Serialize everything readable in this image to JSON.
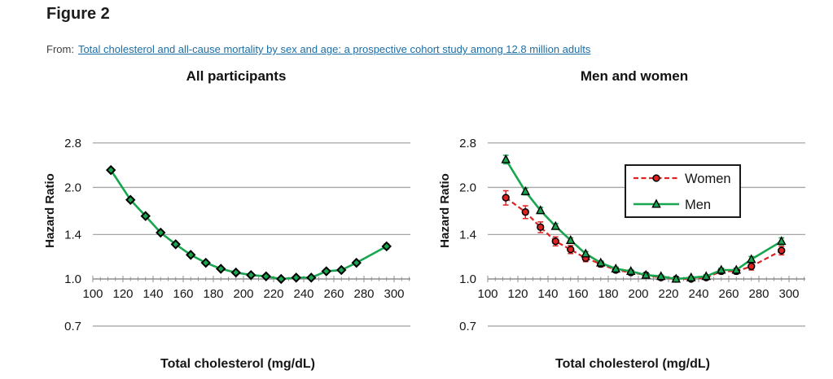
{
  "header": {
    "figure_label": "Figure 2",
    "source_prefix": "From:",
    "source_link_text": "Total cholesterol and all-cause mortality by sex and age: a prospective cohort study among 12.8 million adults"
  },
  "colors": {
    "link": "#1b6ea6",
    "grid": "#a6a6a6",
    "axis": "#8f8f8f",
    "text": "#161616",
    "women": "#dd2222",
    "men": "#17a64e",
    "marker_outline": "#000000",
    "legend_border": "#1a1a1a"
  },
  "chart_data": [
    {
      "type": "line",
      "title": "All participants",
      "xlabel": "Total cholesterol (mg/dL)",
      "ylabel": "Hazard Ratio",
      "yscale": "log",
      "grid": true,
      "xlim": [
        100,
        311
      ],
      "ylim": [
        0.65,
        3.05
      ],
      "xticks": [
        100,
        120,
        140,
        160,
        180,
        200,
        220,
        240,
        260,
        280,
        300
      ],
      "xtick_minor_step": 5,
      "ytick_values": [
        2.8,
        2.0,
        1.4,
        1.0,
        0.7
      ],
      "ytick_labels": [
        "2.8",
        "2.0",
        "1.4",
        "1.0",
        "0.7"
      ],
      "x": [
        112,
        125,
        135,
        145,
        155,
        165,
        175,
        185,
        195,
        205,
        215,
        225,
        235,
        245,
        255,
        265,
        275,
        295
      ],
      "series": [
        {
          "name": "All participants",
          "color": "#17a64e",
          "marker": "diamond",
          "line": "solid",
          "values": [
            2.28,
            1.82,
            1.61,
            1.42,
            1.3,
            1.2,
            1.13,
            1.08,
            1.05,
            1.03,
            1.02,
            1.0,
            1.01,
            1.01,
            1.06,
            1.07,
            1.13,
            1.28
          ],
          "errors": [
            0.03,
            0.025,
            0.02,
            0.018,
            0.015,
            0.013,
            0.012,
            0.01,
            0.009,
            0.008,
            0.008,
            0.007,
            0.008,
            0.009,
            0.012,
            0.013,
            0.018,
            0.025
          ]
        }
      ],
      "legend": null
    },
    {
      "type": "line",
      "title": "Men and women",
      "xlabel": "Total cholesterol (mg/dL)",
      "ylabel": "Hazard Ratio",
      "yscale": "log",
      "grid": true,
      "xlim": [
        100,
        311
      ],
      "ylim": [
        0.65,
        3.05
      ],
      "xticks": [
        100,
        120,
        140,
        160,
        180,
        200,
        220,
        240,
        260,
        280,
        300
      ],
      "xtick_minor_step": 5,
      "ytick_values": [
        2.8,
        2.0,
        1.4,
        1.0,
        0.7
      ],
      "ytick_labels": [
        "2.8",
        "2.0",
        "1.4",
        "1.0",
        "0.7"
      ],
      "x": [
        112,
        125,
        135,
        145,
        155,
        165,
        175,
        185,
        195,
        205,
        215,
        225,
        235,
        245,
        255,
        265,
        275,
        295
      ],
      "series": [
        {
          "name": "Women",
          "color": "#dd2222",
          "marker": "circle",
          "line": "dashed",
          "values": [
            1.85,
            1.66,
            1.48,
            1.33,
            1.25,
            1.17,
            1.12,
            1.07,
            1.05,
            1.03,
            1.01,
            1.0,
            1.0,
            1.01,
            1.06,
            1.06,
            1.1,
            1.24
          ],
          "errors": [
            0.1,
            0.08,
            0.06,
            0.045,
            0.038,
            0.03,
            0.025,
            0.02,
            0.018,
            0.015,
            0.013,
            0.011,
            0.012,
            0.015,
            0.02,
            0.022,
            0.03,
            0.04
          ]
        },
        {
          "name": "Men",
          "color": "#17a64e",
          "marker": "triangle",
          "line": "solid",
          "values": [
            2.47,
            1.94,
            1.68,
            1.49,
            1.34,
            1.21,
            1.13,
            1.08,
            1.06,
            1.03,
            1.02,
            1.0,
            1.01,
            1.02,
            1.07,
            1.07,
            1.16,
            1.33
          ],
          "errors": [
            0.08,
            0.05,
            0.04,
            0.03,
            0.025,
            0.02,
            0.018,
            0.015,
            0.013,
            0.011,
            0.01,
            0.009,
            0.01,
            0.012,
            0.016,
            0.016,
            0.025,
            0.035
          ]
        }
      ],
      "legend": {
        "position": "upper-right",
        "entries": [
          "Women",
          "Men"
        ]
      }
    }
  ]
}
